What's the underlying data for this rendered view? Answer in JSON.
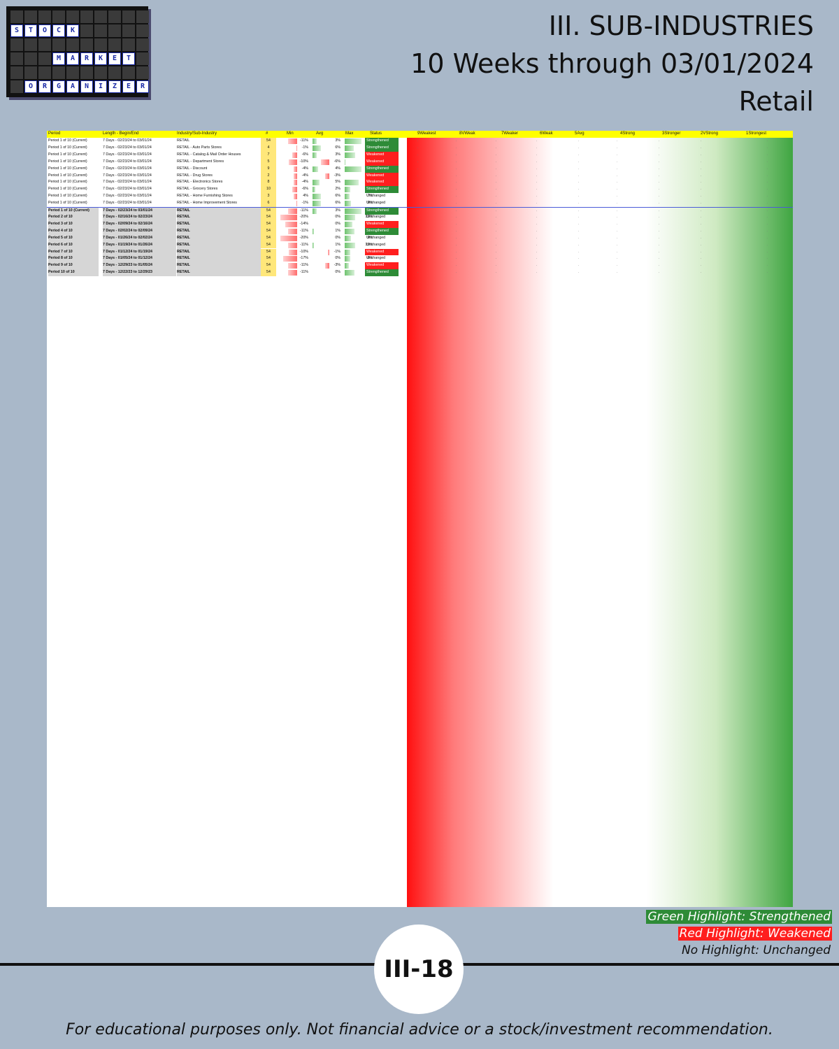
{
  "logo": {
    "words": [
      "STOCK",
      "MARKET",
      "ORGANIZER"
    ]
  },
  "title": {
    "line1": "III. SUB-INDUSTRIES",
    "line2": "10 Weeks through 03/01/2024",
    "line3": "Retail"
  },
  "table": {
    "headers": [
      "Period",
      "Length - Begin/End",
      "Industry/Sub-Industry",
      "#",
      "Min",
      "Avg",
      "Max",
      "Status",
      "9Weakest",
      "8VWeak",
      "7Weaker",
      "6Weak",
      "5Avg",
      "4Strong",
      "3Stronger",
      "2VStrong",
      "1Strongest"
    ],
    "summary_rows": [
      {
        "period": "Period 1 of 10 (Current)",
        "length": "7 Days - 02/23/24 to 03/01/24",
        "industry": "RETAIL",
        "n": "54",
        "min": "-11%",
        "avg": "3%",
        "max": "25%",
        "status": "Strengthened"
      },
      {
        "period": "Period 1 of 10 (Current)",
        "length": "7 Days - 02/23/24 to 03/01/24",
        "industry": "RETAIL - Auto Parts Stores",
        "n": "4",
        "min": "-1%",
        "avg": "6%",
        "max": "13%",
        "status": "Strengthened"
      },
      {
        "period": "Period 1 of 10 (Current)",
        "length": "7 Days - 02/23/24 to 03/01/24",
        "industry": "RETAIL - Catalog & Mail Order Houses",
        "n": "7",
        "min": "-6%",
        "avg": "3%",
        "max": "15%",
        "status": "Weakened"
      },
      {
        "period": "Period 1 of 10 (Current)",
        "length": "7 Days - 02/23/24 to 03/01/24",
        "industry": "RETAIL - Department Stores",
        "n": "5",
        "min": "-10%",
        "avg": "-6%",
        "max": "1%",
        "status": "Weakened"
      },
      {
        "period": "Period 1 of 10 (Current)",
        "length": "7 Days - 02/23/24 to 03/01/24",
        "industry": "RETAIL - Discount",
        "n": "9",
        "min": "-4%",
        "avg": "4%",
        "max": "25%",
        "status": "Strengthened"
      },
      {
        "period": "Period 1 of 10 (Current)",
        "length": "7 Days - 02/23/24 to 03/01/24",
        "industry": "RETAIL - Drug Stores",
        "n": "2",
        "min": "-4%",
        "avg": "-3%",
        "max": "-1%",
        "status": "Weakened"
      },
      {
        "period": "Period 1 of 10 (Current)",
        "length": "7 Days - 02/23/24 to 03/01/24",
        "industry": "RETAIL - Electronics Stores",
        "n": "8",
        "min": "-4%",
        "avg": "5%",
        "max": "20%",
        "status": "Weakened"
      },
      {
        "period": "Period 1 of 10 (Current)",
        "length": "7 Days - 02/23/24 to 03/01/24",
        "industry": "RETAIL - Grocery Stores",
        "n": "10",
        "min": "-6%",
        "avg": "2%",
        "max": "8%",
        "status": "Strengthened"
      },
      {
        "period": "Period 1 of 10 (Current)",
        "length": "7 Days - 02/23/24 to 03/01/24",
        "industry": "RETAIL - Home Furnishing Stores",
        "n": "3",
        "min": "4%",
        "avg": "6%",
        "max": "7%",
        "status": "Unchanged"
      },
      {
        "period": "Period 1 of 10 (Current)",
        "length": "7 Days - 02/23/24 to 03/01/24",
        "industry": "RETAIL - Home Improvement Stores",
        "n": "6",
        "min": "-1%",
        "avg": "6%",
        "max": "9%",
        "status": "Unchanged"
      }
    ],
    "retail_rows": [
      {
        "period": "Period 1 of 10 (Current)",
        "length": "7 Days - 02/23/24 to 03/01/24",
        "industry": "RETAIL",
        "n": "54",
        "min": "-11%",
        "avg": "3%",
        "max": "25%",
        "status": "Strengthened"
      },
      {
        "period": "Period 2 of 10",
        "length": "7 Days - 02/16/24 to 02/23/24",
        "industry": "RETAIL",
        "n": "54",
        "min": "-20%",
        "avg": "0%",
        "max": "15%",
        "status": "Unchanged"
      },
      {
        "period": "Period 3 of 10",
        "length": "7 Days - 02/09/24 to 02/16/24",
        "industry": "RETAIL",
        "n": "54",
        "min": "-14%",
        "avg": "0%",
        "max": "11%",
        "status": "Weakened"
      },
      {
        "period": "Period 4 of 10",
        "length": "7 Days - 02/02/24 to 02/09/24",
        "industry": "RETAIL",
        "n": "54",
        "min": "-11%",
        "avg": "1%",
        "max": "14%",
        "status": "Strengthened"
      },
      {
        "period": "Period 5 of 10",
        "length": "7 Days - 01/26/24 to 02/02/24",
        "industry": "RETAIL",
        "n": "54",
        "min": "-20%",
        "avg": "0%",
        "max": "9%",
        "status": "Unchanged"
      },
      {
        "period": "Period 6 of 10",
        "length": "7 Days - 01/19/24 to 01/26/24",
        "industry": "RETAIL",
        "n": "54",
        "min": "-11%",
        "avg": "1%",
        "max": "15%",
        "status": "Unchanged"
      },
      {
        "period": "Period 7 of 10",
        "length": "7 Days - 01/12/24 to 01/19/24",
        "industry": "RETAIL",
        "n": "54",
        "min": "-10%",
        "avg": "-1%",
        "max": "8%",
        "status": "Weakened"
      },
      {
        "period": "Period 8 of 10",
        "length": "7 Days - 01/05/24 to 01/12/24",
        "industry": "RETAIL",
        "n": "54",
        "min": "-17%",
        "avg": "0%",
        "max": "8%",
        "status": "Unchanged"
      },
      {
        "period": "Period 9 of 10",
        "length": "7 Days - 12/29/23 to 01/05/24",
        "industry": "RETAIL",
        "n": "54",
        "min": "-11%",
        "avg": "-3%",
        "max": "6%",
        "status": "Weakened"
      },
      {
        "period": "Period 10 of 10",
        "length": "7 Days - 12/22/23 to 12/29/23",
        "industry": "RETAIL",
        "n": "54",
        "min": "-11%",
        "avg": "0%",
        "max": "14%",
        "status": "Strengthened"
      }
    ]
  },
  "legend": {
    "green": "Green Highlight: Strengthened",
    "red": "Red Highlight: Weakened",
    "none": "No Highlight: Unchanged"
  },
  "colors": {
    "strengthened": "#2e8b37",
    "weakened": "#ff1e1e",
    "header_yellow": "#ffff00",
    "background": "#a9b8c9"
  },
  "page_number": "III-18",
  "disclaimer": "For educational purposes only. Not financial advice or a stock/investment recommendation."
}
